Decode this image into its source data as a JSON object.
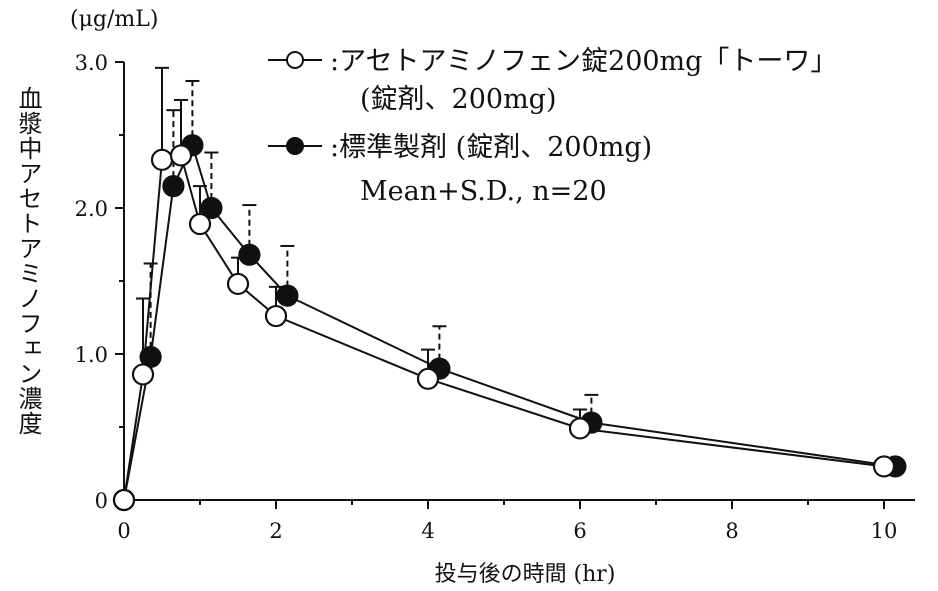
{
  "chart_data": {
    "type": "line",
    "unit_label": "(μg/mL)",
    "ylabel": "血漿中アセトアミノフェン濃度",
    "xlabel": "投与後の時間 (hr)",
    "xlim": [
      0,
      10.5
    ],
    "ylim": [
      0,
      3.0
    ],
    "xticks": [
      0,
      2,
      4,
      6,
      8,
      10
    ],
    "xtick_labels": [
      "0",
      "2",
      "4",
      "6",
      "8",
      "10"
    ],
    "yticks": [
      0,
      1.0,
      2.0,
      3.0
    ],
    "ytick_labels": [
      "0",
      "1.0",
      "2.0",
      "3.0"
    ],
    "grid": false,
    "legend_position": "top-right",
    "note": "Mean+S.D., n=20",
    "series": [
      {
        "name": ":アセトアミノフェン錠200mg「トーワ」",
        "name_line2": "(錠剤、200mg)",
        "marker": "open-circle",
        "color": "#111111",
        "x": [
          0,
          0.25,
          0.5,
          0.75,
          1,
          1.5,
          2,
          4,
          6,
          10
        ],
        "y": [
          0,
          0.86,
          2.33,
          2.36,
          1.89,
          1.48,
          1.26,
          0.83,
          0.49,
          0.23
        ],
        "sd": [
          0,
          0.52,
          0.63,
          0.38,
          0.26,
          0.18,
          0.2,
          0.2,
          0.13,
          0.05
        ]
      },
      {
        "name": ":標準製剤 (錠剤、200mg)",
        "marker": "filled-circle",
        "color": "#111111",
        "x": [
          0,
          0.35,
          0.65,
          0.9,
          1.15,
          1.65,
          2.15,
          4.15,
          6.15,
          10.15
        ],
        "y": [
          0,
          0.98,
          2.15,
          2.43,
          2.0,
          1.68,
          1.4,
          0.9,
          0.53,
          0.23
        ],
        "sd": [
          0,
          0.64,
          0.52,
          0.44,
          0.38,
          0.34,
          0.34,
          0.29,
          0.19,
          0.05
        ]
      }
    ]
  }
}
